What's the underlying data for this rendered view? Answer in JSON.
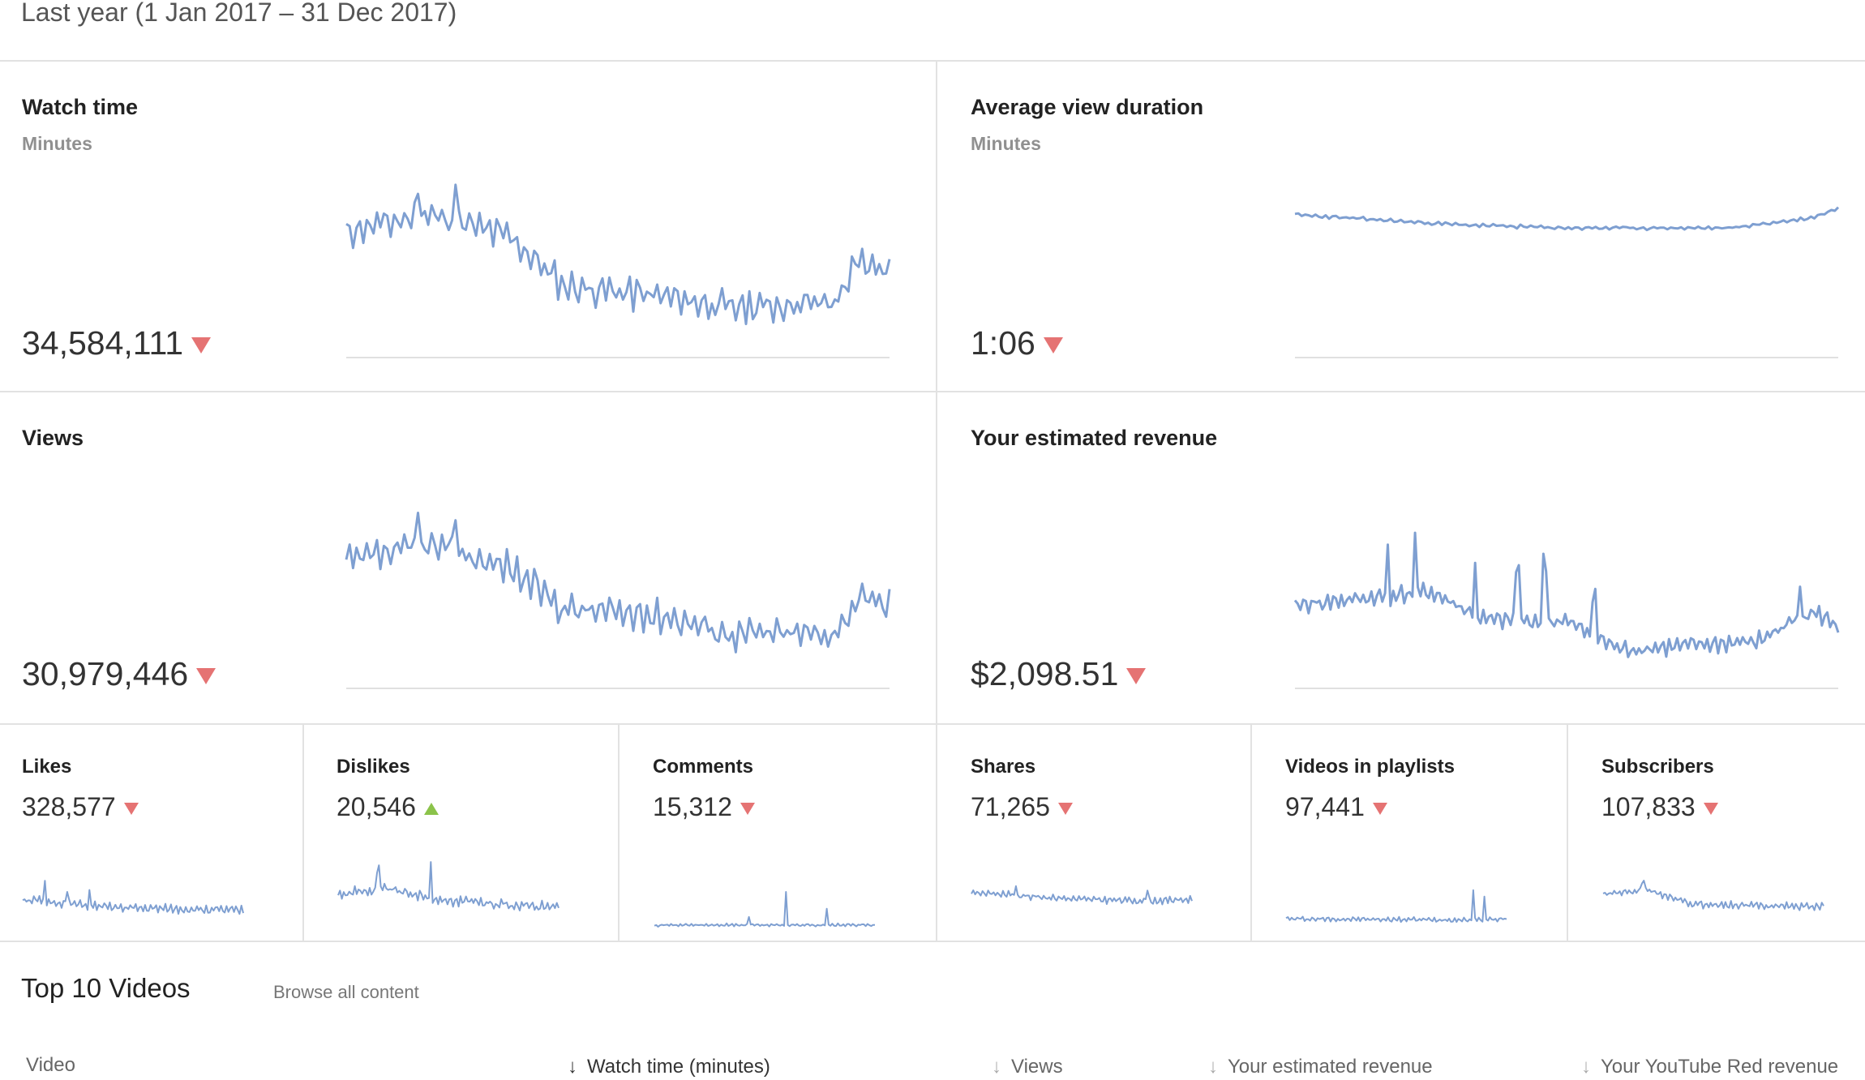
{
  "date_range": "Last year (1 Jan 2017 – 31 Dec 2017)",
  "colors": {
    "accent_line": "#7e9fd1",
    "trend_down": "#e57373",
    "trend_up": "#8bc34a"
  },
  "cards": {
    "watch_time": {
      "title": "Watch time",
      "subtitle": "Minutes",
      "value": "34,584,111",
      "trend": "down"
    },
    "avg_view_duration": {
      "title": "Average view duration",
      "subtitle": "Minutes",
      "value": "1:06",
      "trend": "down"
    },
    "views": {
      "title": "Views",
      "value": "30,979,446",
      "trend": "down"
    },
    "revenue": {
      "title": "Your estimated revenue",
      "value": "$2,098.51",
      "trend": "down"
    },
    "likes": {
      "title": "Likes",
      "value": "328,577",
      "trend": "down"
    },
    "dislikes": {
      "title": "Dislikes",
      "value": "20,546",
      "trend": "up"
    },
    "comments": {
      "title": "Comments",
      "value": "15,312",
      "trend": "down"
    },
    "shares": {
      "title": "Shares",
      "value": "71,265",
      "trend": "down"
    },
    "playlists": {
      "title": "Videos in playlists",
      "value": "97,441",
      "trend": "down"
    },
    "subscribers": {
      "title": "Subscribers",
      "value": "107,833",
      "trend": "down"
    }
  },
  "top_videos": {
    "title": "Top 10 Videos",
    "browse_link": "Browse all content",
    "columns": {
      "video": "Video",
      "watch_time": "Watch time (minutes)",
      "views": "Views",
      "revenue": "Your estimated revenue",
      "red_revenue": "Your YouTube Red revenue"
    }
  }
}
